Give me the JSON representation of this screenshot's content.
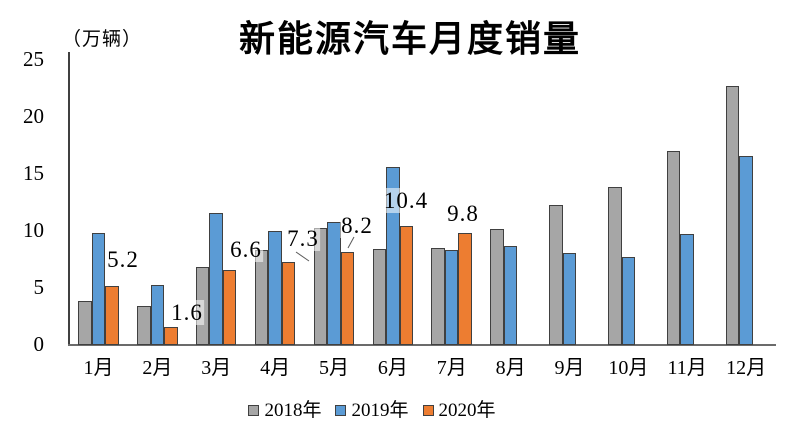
{
  "title": "新能源汽车月度销量",
  "unit_label": "（万辆）",
  "colors": {
    "series_2018": "#A6A6A6",
    "series_2019": "#5B9BD5",
    "series_2020": "#ED7D31",
    "bar_border": "#404040",
    "axis": "#595959",
    "text": "#000000"
  },
  "chart_data": {
    "type": "bar",
    "title": "新能源汽车月度销量",
    "y_unit": "（万辆）",
    "categories": [
      "1月",
      "2月",
      "3月",
      "4月",
      "5月",
      "6月",
      "7月",
      "8月",
      "9月",
      "10月",
      "11月",
      "12月"
    ],
    "series": [
      {
        "name": "2018年",
        "color": "#A6A6A6",
        "values": [
          3.9,
          3.4,
          6.8,
          8.3,
          10.3,
          8.4,
          8.5,
          10.2,
          12.3,
          13.9,
          17.0,
          22.7
        ]
      },
      {
        "name": "2019年",
        "color": "#5B9BD5",
        "values": [
          9.8,
          5.3,
          11.6,
          10.0,
          10.8,
          15.6,
          8.3,
          8.7,
          8.1,
          7.7,
          9.7,
          16.6
        ]
      },
      {
        "name": "2020年",
        "color": "#ED7D31",
        "values": [
          5.2,
          1.6,
          6.6,
          7.3,
          8.2,
          10.4,
          9.8,
          null,
          null,
          null,
          null,
          null
        ]
      }
    ],
    "data_labels": {
      "series": "2020年",
      "labels": [
        "5.2",
        "1.6",
        "6.6",
        "7.3",
        "8.2",
        "10.4",
        "9.8"
      ]
    },
    "ylim": [
      0,
      25
    ],
    "yticks": [
      0,
      5,
      10,
      15,
      20,
      25
    ],
    "grid": false,
    "legend_position": "bottom",
    "legend": [
      "2018年",
      "2019年",
      "2020年"
    ]
  }
}
